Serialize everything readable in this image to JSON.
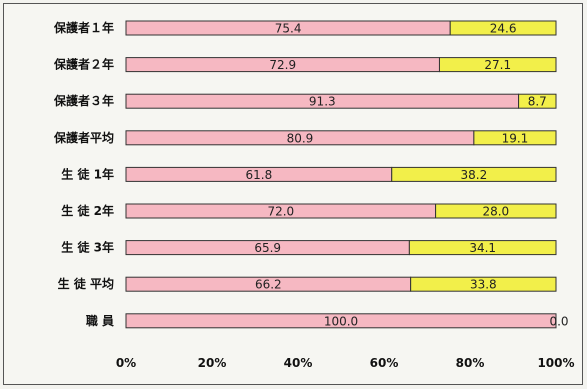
{
  "chart_data": {
    "type": "bar",
    "stacked": true,
    "orientation": "horizontal",
    "categories": [
      "保護者１年",
      "保護者２年",
      "保護者３年",
      "保護者平均",
      "生 徒 1年",
      "生 徒 2年",
      "生 徒 3年",
      "生 徒 平均",
      "職 員"
    ],
    "series": [
      {
        "values": [
          75.4,
          72.9,
          91.3,
          80.9,
          61.8,
          72.0,
          65.9,
          66.2,
          100.0
        ],
        "labels": [
          "75.4",
          "72.9",
          "91.3",
          "80.9",
          "61.8",
          "72.0",
          "65.9",
          "66.2",
          "100.0"
        ]
      },
      {
        "values": [
          24.6,
          27.1,
          8.7,
          19.1,
          38.2,
          28.0,
          34.1,
          33.8,
          0.0
        ],
        "labels": [
          "24.6",
          "27.1",
          "8.7",
          "19.1",
          "38.2",
          "28.0",
          "34.1",
          "33.8",
          "0.0"
        ]
      }
    ],
    "xlim": [
      0,
      100
    ],
    "xticks": [
      "0%",
      "20%",
      "40%",
      "60%",
      "80%",
      "100%"
    ],
    "colors": [
      "#f6b8c2",
      "#f2ef4a"
    ],
    "grid": false
  }
}
